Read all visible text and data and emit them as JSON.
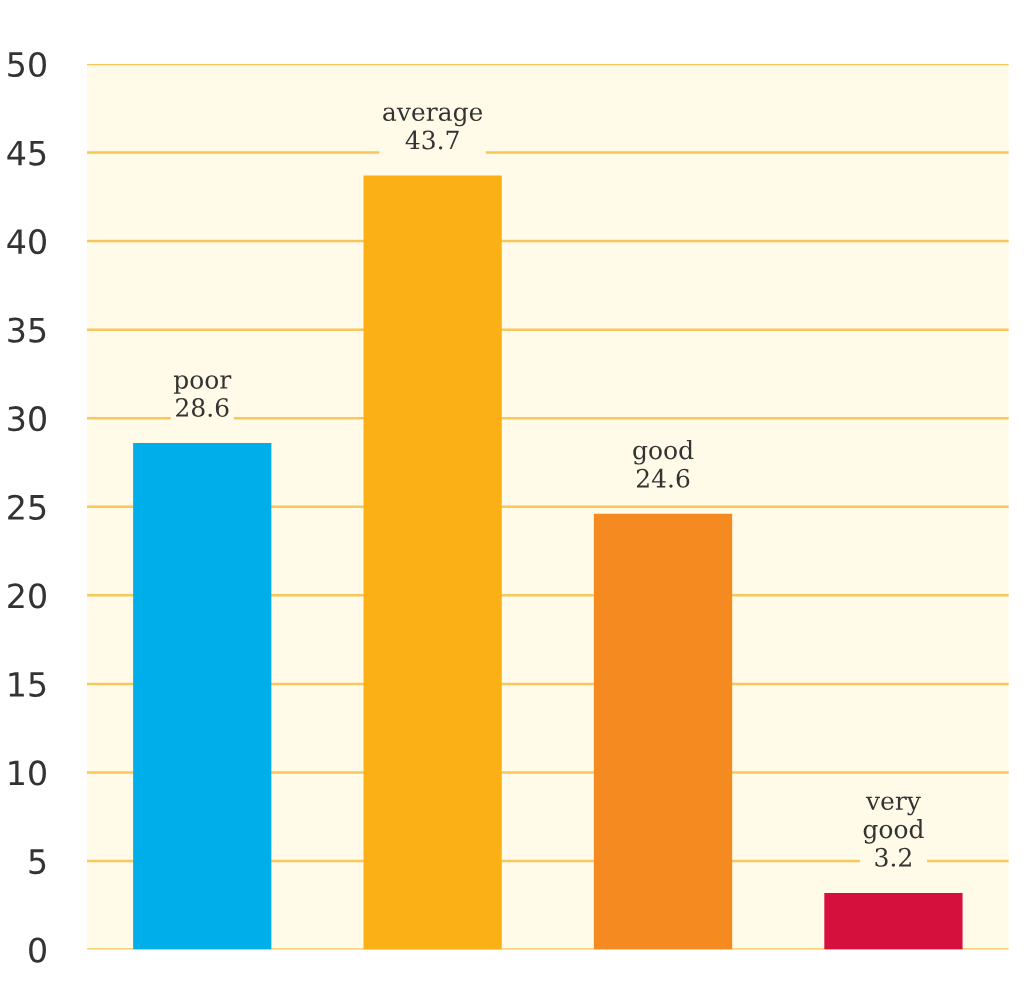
{
  "chart_data": {
    "type": "bar",
    "categories": [
      "poor",
      "average",
      "good",
      "very good"
    ],
    "values": [
      28.6,
      43.7,
      24.6,
      3.2
    ],
    "colors": [
      "#00aee9",
      "#fbb016",
      "#f58a20",
      "#d5103c"
    ],
    "ylim": [
      0,
      50
    ],
    "yticks": [
      0,
      5,
      10,
      15,
      20,
      25,
      30,
      35,
      40,
      45,
      50
    ],
    "grid": "y",
    "data_labels": true,
    "tick_labels": "y"
  }
}
